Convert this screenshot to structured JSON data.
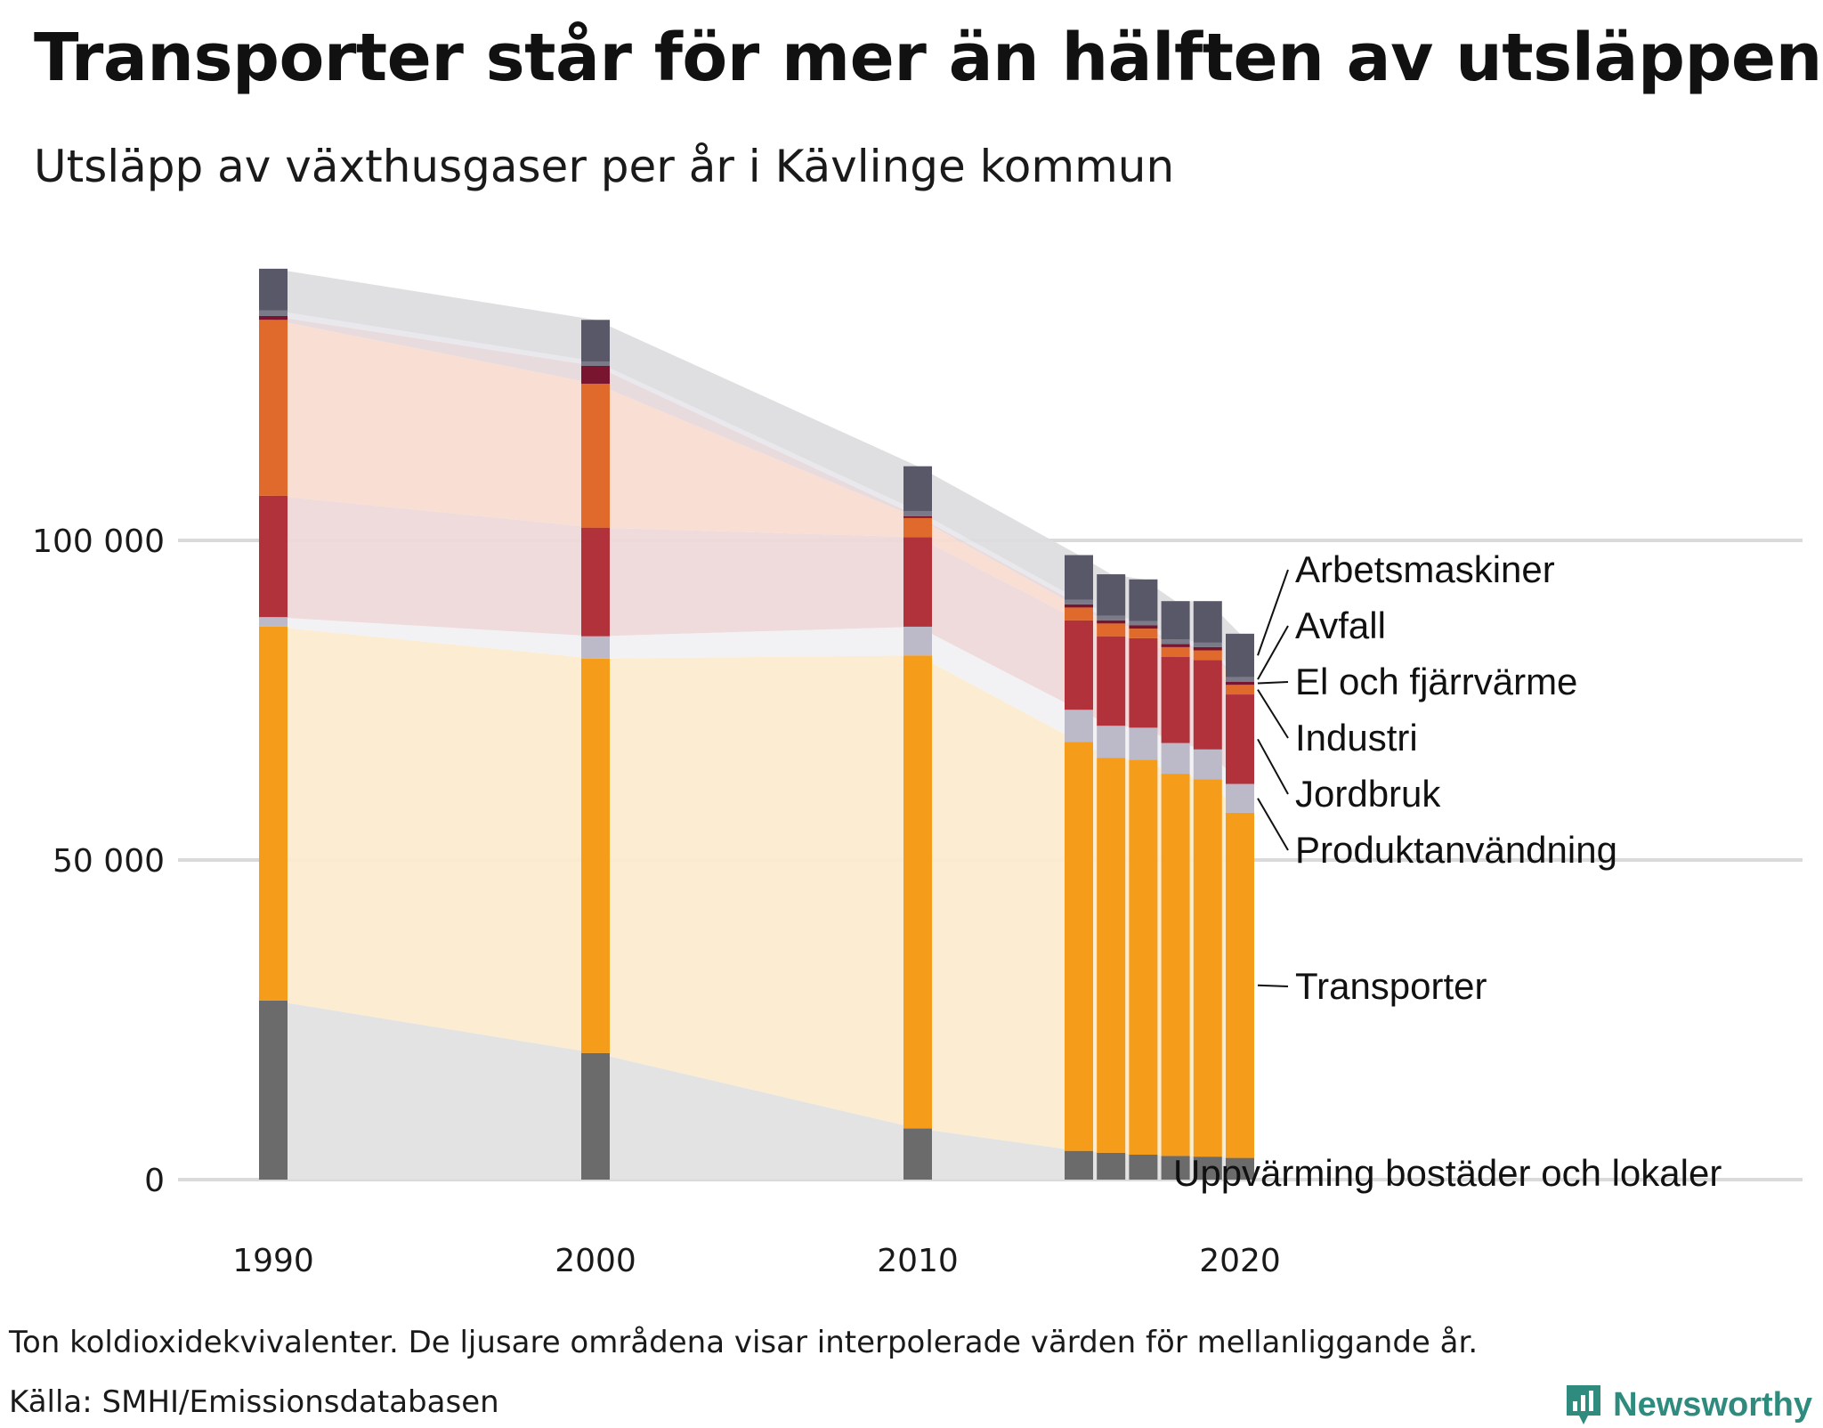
{
  "title": "Transporter står för mer än hälften av utsläppen",
  "subtitle": "Utsläpp av växthusgaser per år i Kävlinge kommun",
  "note": "Ton koldioxidekvivalenter. De ljusare områdena visar interpolerade värden för mellanliggande år.",
  "source": "Källa: SMHI/Emissionsdatabasen",
  "brand": "Newsworthy",
  "chart_data": {
    "type": "bar",
    "stacked": true,
    "title": "Utsläpp av växthusgaser per år i Kävlinge kommun",
    "xlabel": "",
    "ylabel": "Ton koldioxidekvivalenter",
    "ylim": [
      0,
      140000
    ],
    "yticks": [
      0,
      50000,
      100000
    ],
    "ytick_labels": [
      "0",
      "50 000",
      "100 000"
    ],
    "xticks": [
      1990,
      2000,
      2010,
      2020
    ],
    "xtick_labels": [
      "1990",
      "2000",
      "2010",
      "2020"
    ],
    "grid": true,
    "categories": [
      "1990",
      "2000",
      "2010",
      "2015",
      "2016",
      "2017",
      "2018",
      "2019",
      "2020"
    ],
    "x": [
      1990,
      2000,
      2010,
      2015,
      2016,
      2017,
      2018,
      2019,
      2020
    ],
    "series": [
      {
        "name": "Uppvärming bostäder och lokaler",
        "color": "#6b6b6b",
        "light": "#e2e2e2",
        "values": [
          28000,
          19800,
          8000,
          4500,
          4200,
          3900,
          3700,
          3600,
          3400
        ]
      },
      {
        "name": "Transporter",
        "color": "#f59c1a",
        "light": "#fcebd0",
        "values": [
          58500,
          61700,
          74000,
          64000,
          61800,
          61800,
          59800,
          59000,
          54000
        ]
      },
      {
        "name": "Produktanvändning",
        "color": "#bcb9c8",
        "light": "#f1f1f4",
        "values": [
          1500,
          3500,
          4500,
          5000,
          5000,
          5000,
          4800,
          4700,
          4500
        ]
      },
      {
        "name": "Jordbruk",
        "color": "#b2323b",
        "light": "#eed8da",
        "values": [
          19000,
          17000,
          14000,
          14000,
          14000,
          14000,
          13500,
          14000,
          14000
        ]
      },
      {
        "name": "Industri",
        "color": "#e06a2c",
        "light": "#f9dcd1",
        "values": [
          27500,
          22500,
          3000,
          2000,
          2000,
          1500,
          1500,
          1500,
          1500
        ]
      },
      {
        "name": "El och fjärrvärme",
        "color": "#7a1530",
        "light": "#e7d9dc",
        "values": [
          600,
          2800,
          300,
          500,
          500,
          500,
          500,
          500,
          500
        ]
      },
      {
        "name": "Avfall",
        "color": "#7a7a88",
        "light": "#e8e8ec",
        "values": [
          900,
          700,
          800,
          700,
          700,
          700,
          700,
          700,
          700
        ]
      },
      {
        "name": "Arbetsmaskiner",
        "color": "#595868",
        "light": "#dddde0",
        "values": [
          6500,
          6500,
          7000,
          7000,
          6500,
          6500,
          6000,
          6500,
          6800
        ]
      }
    ]
  }
}
